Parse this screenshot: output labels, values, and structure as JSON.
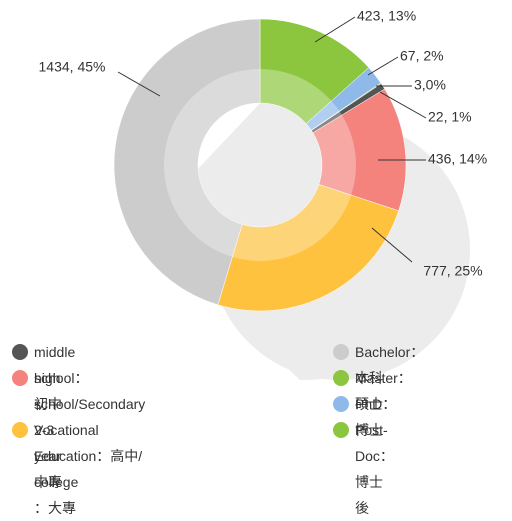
{
  "chart_data": {
    "type": "donut",
    "categories": [
      "Master：碩士",
      "PhD：博士",
      "Post-Doc：博士後",
      "middle school：初中",
      "high school/Secondary\nVocational Education：高中/中專",
      "2-3 year college ：大專",
      "Bachelor：本科"
    ],
    "values": [
      423,
      67,
      3,
      22,
      436,
      777,
      1434
    ],
    "value_labels": [
      "423, 13%",
      "67, 2%",
      "3,0%",
      "22, 1%",
      "436, 14%",
      "777, 25%",
      "1434, 45%"
    ],
    "colors": [
      "#8cc63e",
      "#8fb9e8",
      "#8cc63e",
      "#555555",
      "#f4837d",
      "#fec23f",
      "#cccccc"
    ]
  }
}
